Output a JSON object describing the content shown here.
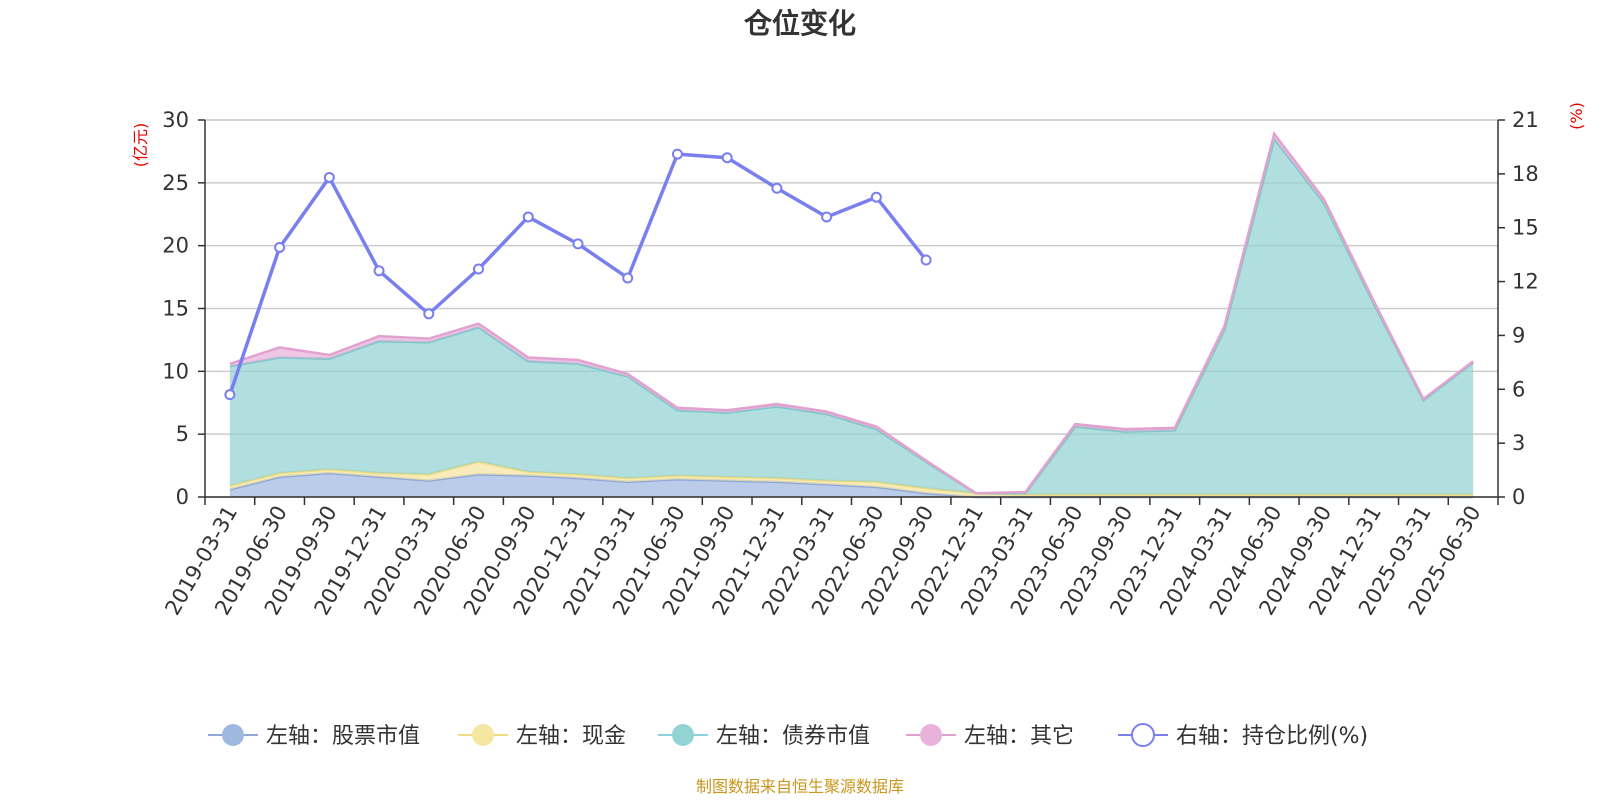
{
  "chart_data": {
    "type": "area",
    "title": "仓位变化",
    "left_unit": "(亿元)",
    "right_unit": "(%)",
    "left_ylim": [
      0,
      30
    ],
    "left_ticks": [
      "0",
      "5",
      "10",
      "15",
      "20",
      "25",
      "30"
    ],
    "right_ylim": [
      0,
      21
    ],
    "right_ticks": [
      "0",
      "3",
      "6",
      "9",
      "12",
      "15",
      "18",
      "21"
    ],
    "grid": true,
    "legend_position": "bottom",
    "categories": [
      "2019-03-31",
      "2019-06-30",
      "2019-09-30",
      "2019-12-31",
      "2020-03-31",
      "2020-06-30",
      "2020-09-30",
      "2020-12-31",
      "2021-03-31",
      "2021-06-30",
      "2021-09-30",
      "2021-12-31",
      "2022-03-31",
      "2022-06-30",
      "2022-09-30",
      "2022-12-31",
      "2023-03-31",
      "2023-06-30",
      "2023-09-30",
      "2023-12-31",
      "2024-03-31",
      "2024-06-30",
      "2024-09-30",
      "2024-12-31",
      "2025-03-31",
      "2025-06-30"
    ],
    "series": [
      {
        "name": "左轴：股票市值",
        "axis": "left",
        "color": "#9fb8e0",
        "values": [
          0.6,
          1.6,
          1.9,
          1.6,
          1.3,
          1.8,
          1.7,
          1.5,
          1.2,
          1.4,
          1.3,
          1.2,
          1.0,
          0.8,
          0.3,
          0,
          0,
          0,
          0,
          0,
          0,
          0,
          0,
          0,
          0,
          0
        ]
      },
      {
        "name": "左轴：现金",
        "axis": "left",
        "color": "#f5e6a0",
        "values": [
          0.3,
          0.3,
          0.3,
          0.3,
          0.5,
          1.0,
          0.3,
          0.3,
          0.3,
          0.3,
          0.3,
          0.3,
          0.3,
          0.4,
          0.4,
          0.3,
          0.2,
          0.2,
          0.2,
          0.2,
          0.2,
          0.2,
          0.2,
          0.2,
          0.2,
          0.2
        ]
      },
      {
        "name": "左轴：债券市值",
        "axis": "left",
        "color": "#93d3d3",
        "values": [
          9.5,
          9.2,
          8.8,
          10.5,
          10.5,
          10.7,
          8.8,
          8.8,
          8.1,
          5.2,
          5.1,
          5.7,
          5.3,
          4.2,
          2.1,
          0,
          0.1,
          5.4,
          5.0,
          5.1,
          13.1,
          28.3,
          23.2,
          15.2,
          7.5,
          10.5
        ]
      },
      {
        "name": "左轴：其它",
        "axis": "left",
        "color": "#e8b2da",
        "values": [
          0.2,
          0.8,
          0.3,
          0.4,
          0.3,
          0.3,
          0.3,
          0.3,
          0.2,
          0.2,
          0.2,
          0.2,
          0.2,
          0.2,
          0.1,
          0,
          0.1,
          0.2,
          0.2,
          0.2,
          0.3,
          0.4,
          0.3,
          0.2,
          0.1,
          0.1
        ]
      },
      {
        "name": "右轴：持仓比例(%)",
        "axis": "right",
        "color": "#7a7ff0",
        "values": [
          5.7,
          13.9,
          17.8,
          12.6,
          10.2,
          12.7,
          15.6,
          14.1,
          12.2,
          19.1,
          18.9,
          17.2,
          15.6,
          16.7,
          13.2,
          null,
          null,
          null,
          null,
          null,
          null,
          null,
          null,
          null,
          null,
          null
        ]
      }
    ]
  },
  "source": "制图数据来自恒生聚源数据库"
}
